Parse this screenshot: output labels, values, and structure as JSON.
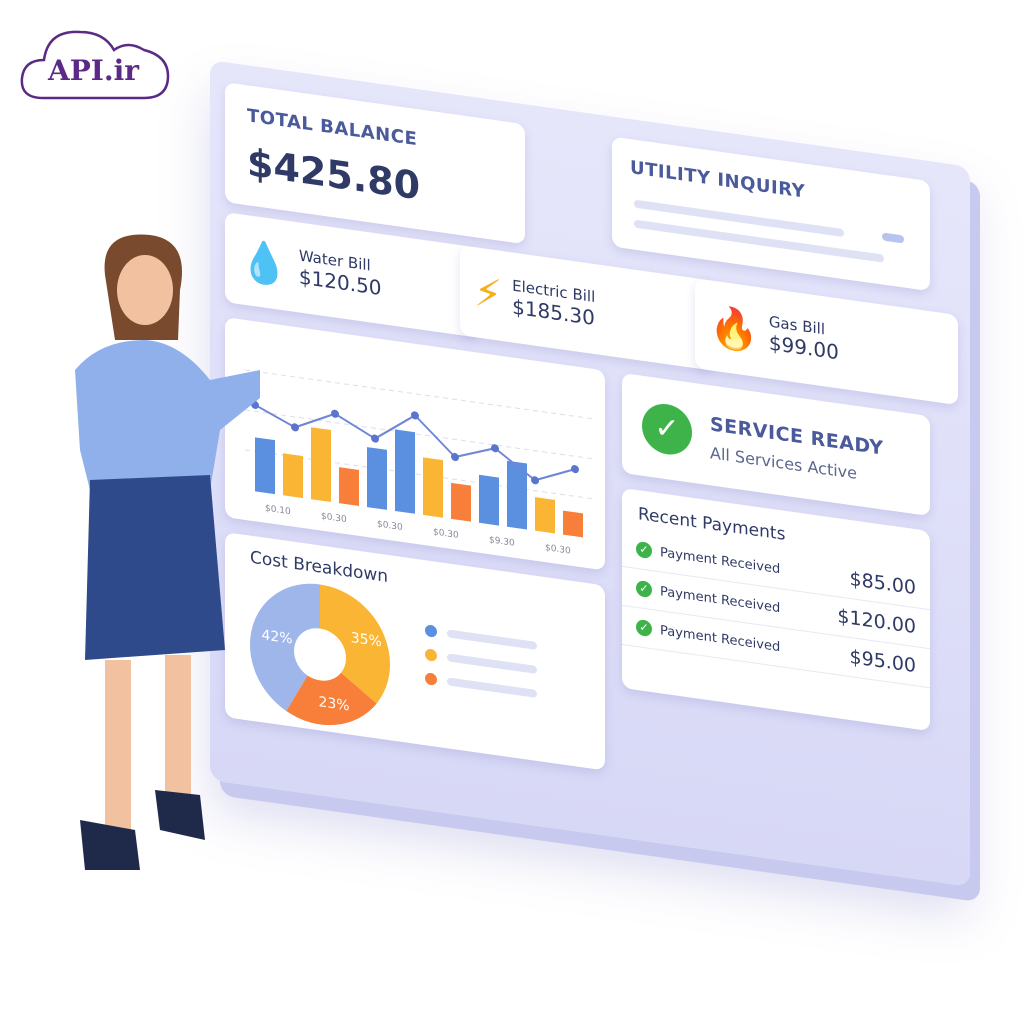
{
  "logo": {
    "text": "API.ir",
    "color": "#5b2a86"
  },
  "balance": {
    "label": "TOTAL BALANCE",
    "value": "$425.80"
  },
  "inquiry": {
    "label": "UTILITY INQUIRY"
  },
  "bills": [
    {
      "name": "Water Bill",
      "amount": "$120.50",
      "icon": "water-drop-icon",
      "color": "#3f8fe0"
    },
    {
      "name": "Electric Bill",
      "amount": "$185.30",
      "icon": "lightning-icon",
      "color": "#f5b020"
    },
    {
      "name": "Gas Bill",
      "amount": "$99.00",
      "icon": "flame-icon",
      "color": "#f06a2a"
    }
  ],
  "chart_data": {
    "type": "bar",
    "categories": [
      "$0.10",
      "$0.30",
      "$0.30",
      "$0.30",
      "$9.30",
      "$0.30"
    ],
    "bars": [
      45,
      35,
      60,
      30,
      50,
      68,
      48,
      30,
      40,
      55,
      28,
      20
    ],
    "bar_colors": [
      "#5b8fe0",
      "#fbb535",
      "#fbb535",
      "#f77f3a",
      "#5b8fe0",
      "#5b8fe0",
      "#fbb535",
      "#f77f3a",
      "#5b8fe0",
      "#5b8fe0",
      "#fbb535",
      "#f77f3a"
    ],
    "line": [
      72,
      58,
      74,
      58,
      82,
      52,
      64,
      42,
      56
    ],
    "ylim": [
      0,
      100
    ],
    "grid": true
  },
  "service": {
    "title": "SERVICE READY",
    "subtitle": "All Services Active"
  },
  "cost": {
    "title": "Cost Breakdown",
    "slices": [
      {
        "label": "35%",
        "value": 35,
        "color": "#fbb535"
      },
      {
        "label": "23%",
        "value": 23,
        "color": "#f77f3a"
      },
      {
        "label": "42%",
        "value": 42,
        "color": "#9fb6ea"
      }
    ],
    "legend_colors": [
      "#5b8fe0",
      "#fbb535",
      "#f77f3a"
    ]
  },
  "payments": {
    "title": "Recent Payments",
    "items": [
      {
        "label": "Payment Received",
        "amount": "$85.00"
      },
      {
        "label": "Payment Received",
        "amount": "$120.00"
      },
      {
        "label": "Payment Received",
        "amount": "$95.00"
      }
    ]
  }
}
